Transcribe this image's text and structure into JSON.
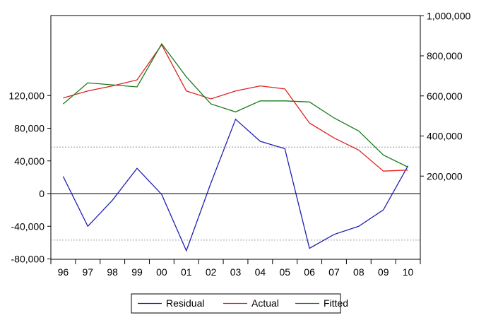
{
  "chart_data": {
    "type": "line",
    "title": "",
    "xlabel": "",
    "categories": [
      "96",
      "97",
      "98",
      "99",
      "00",
      "01",
      "02",
      "03",
      "04",
      "05",
      "06",
      "07",
      "08",
      "09",
      "10"
    ],
    "left_axis": {
      "range": [
        -80000,
        120000
      ],
      "ticks": [
        120000,
        80000,
        40000,
        0,
        -40000,
        -80000
      ],
      "tick_labels": [
        "120,000",
        "80,000",
        "40,000",
        "0",
        "-40,000",
        "-80,000"
      ]
    },
    "right_axis": {
      "range": [
        0,
        1000000
      ],
      "ticks": [
        1000000,
        800000,
        600000,
        400000,
        200000
      ],
      "tick_labels": [
        "1,000,000",
        "800,000",
        "600,000",
        "400,000",
        "200,000"
      ]
    },
    "reference_lines": {
      "zero": 0,
      "upper_band": 57000,
      "lower_band": -57000
    },
    "series": [
      {
        "name": "Residual",
        "axis": "left",
        "color": "#1f1fb4",
        "values": [
          21000,
          -40000,
          -8000,
          31000,
          -1000,
          -70000,
          13000,
          91000,
          64000,
          55000,
          -67000,
          -50000,
          -40000,
          -20000,
          34000
        ]
      },
      {
        "name": "Actual",
        "axis": "right",
        "color": "#e02020",
        "values": [
          590000,
          625000,
          650000,
          680000,
          855000,
          625000,
          585000,
          625000,
          650000,
          635000,
          465000,
          390000,
          330000,
          225000,
          230000
        ]
      },
      {
        "name": "Fitted",
        "axis": "right",
        "color": "#1a7a1a",
        "values": [
          560000,
          665000,
          655000,
          645000,
          860000,
          695000,
          560000,
          520000,
          575000,
          575000,
          570000,
          490000,
          425000,
          305000,
          245000
        ]
      }
    ],
    "legend": {
      "position": "bottom-center",
      "entries": [
        "Residual",
        "Actual",
        "Fitted"
      ]
    },
    "grid": false
  }
}
